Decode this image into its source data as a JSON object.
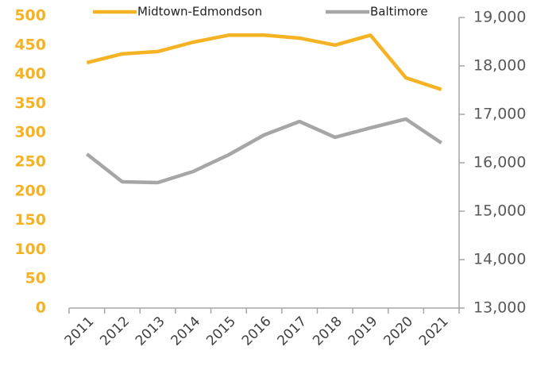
{
  "chart_data": {
    "type": "line",
    "categories": [
      "2011",
      "2012",
      "2013",
      "2014",
      "2015",
      "2016",
      "2017",
      "2018",
      "2019",
      "2020",
      "2021"
    ],
    "series": [
      {
        "name": "Midtown-Edmondson",
        "color": "#F5B324",
        "values": [
          420,
          435,
          439,
          455,
          467,
          467,
          462,
          450,
          467,
          394,
          374
        ]
      },
      {
        "name": "Baltimore",
        "color": "#A6A6A6",
        "axis": "y2",
        "values": [
          16180,
          15607,
          15590,
          15820,
          16164,
          16574,
          16852,
          16525,
          16721,
          16902,
          16410
        ]
      }
    ],
    "ylim": [
      0,
      500
    ],
    "yticks": [
      0,
      50,
      100,
      150,
      200,
      250,
      300,
      350,
      400,
      450,
      500
    ],
    "y2lim": [
      13000,
      19000
    ],
    "y2ticks": [
      {
        "value": 13000,
        "label": "13,000"
      },
      {
        "value": 14000,
        "label": "14,000"
      },
      {
        "value": 15000,
        "label": "15,000"
      },
      {
        "value": 16000,
        "label": "16,000"
      },
      {
        "value": 17000,
        "label": "17,000"
      },
      {
        "value": 18000,
        "label": "18,000"
      },
      {
        "value": 19000,
        "label": "19,000"
      }
    ],
    "legend": "top",
    "grid": false
  }
}
